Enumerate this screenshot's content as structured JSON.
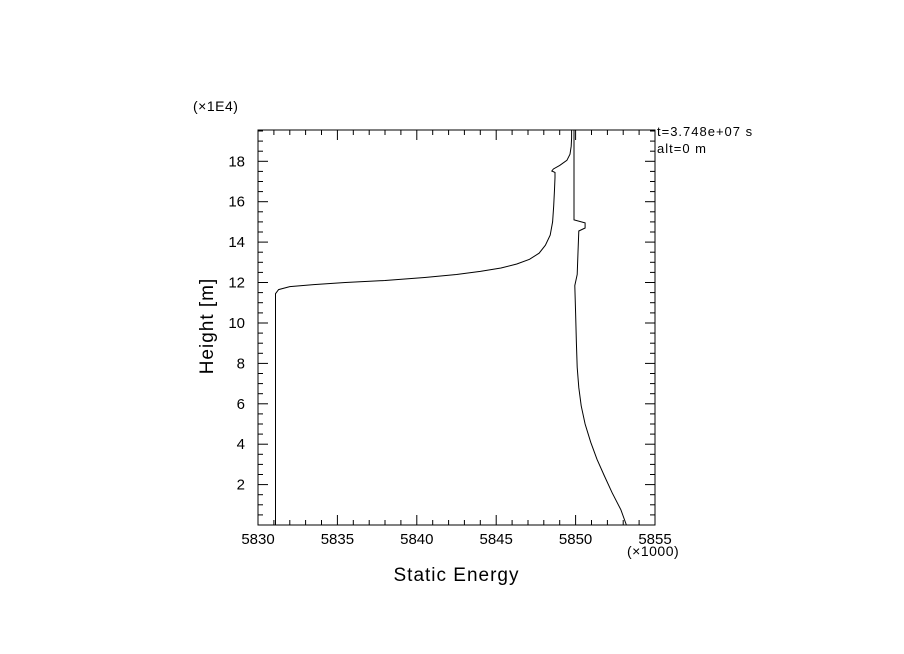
{
  "chart_data": {
    "type": "line",
    "title": "",
    "xlabel": "Static Energy",
    "ylabel": "Height [m]",
    "x_scale_note": "(×1000)",
    "y_scale_note": "(×1E4)",
    "xlim": [
      5830,
      5855
    ],
    "ylim": [
      0,
      19.55
    ],
    "x_ticks": [
      5830,
      5835,
      5840,
      5845,
      5850,
      5855
    ],
    "y_ticks": [
      2,
      4,
      6,
      8,
      10,
      12,
      14,
      16,
      18
    ],
    "x_tick_step": 5,
    "x_minor_step": 1,
    "y_tick_step": 2,
    "y_minor_step": 0.5,
    "grid": false,
    "legend": "none",
    "colors": {
      "line": "#000000",
      "background": "#ffffff"
    },
    "annotations": [
      "t=3.748e+07 s",
      "alt=0 m"
    ],
    "series": [
      {
        "name": "curve-left",
        "points": [
          [
            5831.1,
            0
          ],
          [
            5831.1,
            11.45
          ],
          [
            5831.3,
            11.65
          ],
          [
            5832,
            11.8
          ],
          [
            5833.5,
            11.9
          ],
          [
            5835.5,
            12
          ],
          [
            5838,
            12.1
          ],
          [
            5840.5,
            12.25
          ],
          [
            5842.5,
            12.4
          ],
          [
            5844,
            12.55
          ],
          [
            5845.3,
            12.72
          ],
          [
            5846.3,
            12.92
          ],
          [
            5847.1,
            13.15
          ],
          [
            5847.7,
            13.45
          ],
          [
            5848.1,
            13.85
          ],
          [
            5848.4,
            14.35
          ],
          [
            5848.55,
            15
          ],
          [
            5848.62,
            15.8
          ],
          [
            5848.67,
            16.6
          ],
          [
            5848.7,
            17.2
          ],
          [
            5848.7,
            17.45
          ],
          [
            5848.5,
            17.52
          ],
          [
            5848.6,
            17.62
          ],
          [
            5849,
            17.8
          ],
          [
            5849.45,
            18.05
          ],
          [
            5849.65,
            18.35
          ],
          [
            5849.72,
            18.75
          ],
          [
            5849.75,
            19.15
          ],
          [
            5849.75,
            19.55
          ]
        ]
      },
      {
        "name": "curve-right",
        "points": [
          [
            5849.9,
            19.55
          ],
          [
            5849.9,
            15.1
          ],
          [
            5850.6,
            14.95
          ],
          [
            5850.6,
            14.7
          ],
          [
            5850.2,
            14.55
          ],
          [
            5850.15,
            13.5
          ],
          [
            5850.1,
            12.4
          ],
          [
            5849.95,
            11.85
          ],
          [
            5850,
            10.5
          ],
          [
            5850.05,
            9
          ],
          [
            5850.1,
            7.8
          ],
          [
            5850.2,
            6.8
          ],
          [
            5850.35,
            5.9
          ],
          [
            5850.6,
            5
          ],
          [
            5850.95,
            4.1
          ],
          [
            5851.35,
            3.25
          ],
          [
            5851.8,
            2.45
          ],
          [
            5852.3,
            1.6
          ],
          [
            5852.85,
            0.75
          ],
          [
            5853.2,
            0
          ]
        ]
      }
    ]
  }
}
